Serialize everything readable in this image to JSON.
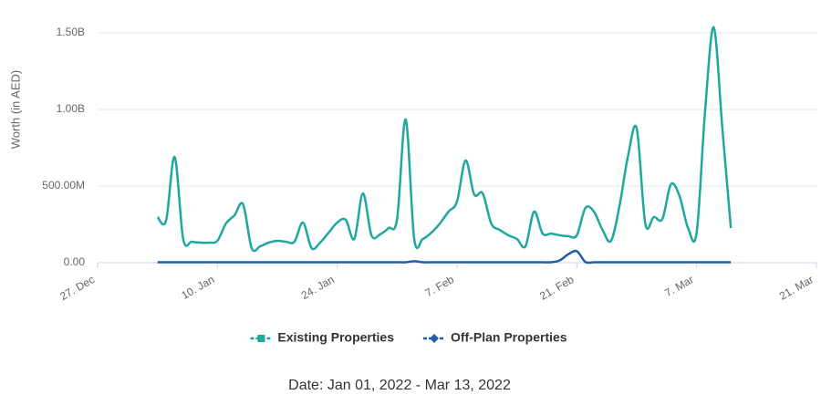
{
  "chart_data": {
    "type": "line",
    "title": "Date: Jan 01, 2022 - Mar 13, 2022",
    "y_label": "Worth (in AED)",
    "x": [
      "2022-01-03",
      "2022-01-04",
      "2022-01-05",
      "2022-01-06",
      "2022-01-07",
      "2022-01-08",
      "2022-01-09",
      "2022-01-10",
      "2022-01-11",
      "2022-01-12",
      "2022-01-13",
      "2022-01-14",
      "2022-01-15",
      "2022-01-16",
      "2022-01-17",
      "2022-01-18",
      "2022-01-19",
      "2022-01-20",
      "2022-01-21",
      "2022-01-22",
      "2022-01-23",
      "2022-01-24",
      "2022-01-25",
      "2022-01-26",
      "2022-01-27",
      "2022-01-28",
      "2022-01-29",
      "2022-01-30",
      "2022-01-31",
      "2022-02-01",
      "2022-02-02",
      "2022-02-03",
      "2022-02-04",
      "2022-02-05",
      "2022-02-06",
      "2022-02-07",
      "2022-02-08",
      "2022-02-09",
      "2022-02-10",
      "2022-02-11",
      "2022-02-12",
      "2022-02-13",
      "2022-02-14",
      "2022-02-15",
      "2022-02-16",
      "2022-02-17",
      "2022-02-18",
      "2022-02-19",
      "2022-02-20",
      "2022-02-21",
      "2022-02-22",
      "2022-02-23",
      "2022-02-24",
      "2022-02-25",
      "2022-02-26",
      "2022-02-27",
      "2022-02-28",
      "2022-03-01",
      "2022-03-02",
      "2022-03-03",
      "2022-03-04",
      "2022-03-05",
      "2022-03-06",
      "2022-03-07",
      "2022-03-08",
      "2022-03-09",
      "2022-03-10",
      "2022-03-11"
    ],
    "series": [
      {
        "name": "Existing Properties",
        "color": "#1fa89e",
        "marker": "square",
        "values": [
          298000000,
          274000000,
          690000000,
          155000000,
          137000000,
          131000000,
          131000000,
          143000000,
          256000000,
          310000000,
          381000000,
          95000000,
          107000000,
          131000000,
          143000000,
          137000000,
          137000000,
          262000000,
          95000000,
          131000000,
          196000000,
          262000000,
          280000000,
          155000000,
          452000000,
          179000000,
          185000000,
          226000000,
          286000000,
          935000000,
          155000000,
          155000000,
          196000000,
          256000000,
          333000000,
          400000000,
          667000000,
          446000000,
          452000000,
          256000000,
          214000000,
          179000000,
          155000000,
          107000000,
          333000000,
          190000000,
          190000000,
          179000000,
          173000000,
          179000000,
          357000000,
          333000000,
          214000000,
          143000000,
          375000000,
          702000000,
          875000000,
          256000000,
          298000000,
          286000000,
          512000000,
          435000000,
          226000000,
          196000000,
          1000000000,
          1536000000,
          881000000,
          226000000
        ]
      },
      {
        "name": "Off-Plan Properties",
        "color": "#1f5fa8",
        "marker": "diamond",
        "values": [
          3000000,
          3000000,
          3000000,
          3000000,
          3000000,
          3000000,
          3000000,
          3000000,
          3000000,
          3000000,
          3000000,
          3000000,
          3000000,
          3000000,
          3000000,
          3000000,
          3000000,
          3000000,
          3000000,
          3000000,
          3000000,
          3000000,
          3000000,
          3000000,
          3000000,
          3000000,
          3000000,
          3000000,
          3000000,
          3000000,
          10000000,
          3000000,
          3000000,
          3000000,
          3000000,
          3000000,
          3000000,
          3000000,
          3000000,
          3000000,
          3000000,
          3000000,
          3000000,
          3000000,
          3000000,
          3000000,
          3000000,
          15000000,
          55000000,
          75000000,
          5000000,
          3000000,
          3000000,
          3000000,
          3000000,
          3000000,
          3000000,
          3000000,
          3000000,
          3000000,
          3000000,
          3000000,
          3000000,
          3000000,
          3000000,
          3000000,
          3000000,
          3000000
        ]
      }
    ],
    "xlim": [
      "2021-12-27",
      "2022-03-21"
    ],
    "xticks": [
      {
        "value": "2021-12-27",
        "label": "27. Dec"
      },
      {
        "value": "2022-01-10",
        "label": "10. Jan"
      },
      {
        "value": "2022-01-24",
        "label": "24. Jan"
      },
      {
        "value": "2022-02-07",
        "label": "7. Feb"
      },
      {
        "value": "2022-02-21",
        "label": "21. Feb"
      },
      {
        "value": "2022-03-07",
        "label": "7. Mar"
      },
      {
        "value": "2022-03-21",
        "label": "21. Mar"
      }
    ],
    "ylim": [
      0,
      1500000000
    ],
    "yticks": [
      {
        "value": 0,
        "label": "0.00"
      },
      {
        "value": 500000000,
        "label": "500.00M"
      },
      {
        "value": 1000000000,
        "label": "1.00B"
      },
      {
        "value": 1500000000,
        "label": "1.50B"
      }
    ],
    "grid": true,
    "legend": "bottom"
  }
}
